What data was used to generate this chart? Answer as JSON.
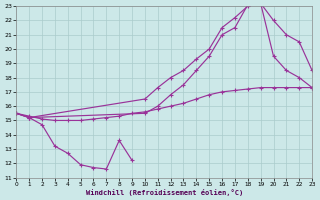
{
  "xlabel": "Windchill (Refroidissement éolien,°C)",
  "xlim": [
    0,
    23
  ],
  "ylim": [
    11,
    23
  ],
  "xticks": [
    0,
    1,
    2,
    3,
    4,
    5,
    6,
    7,
    8,
    9,
    10,
    11,
    12,
    13,
    14,
    15,
    16,
    17,
    18,
    19,
    20,
    21,
    22,
    23
  ],
  "yticks": [
    11,
    12,
    13,
    14,
    15,
    16,
    17,
    18,
    19,
    20,
    21,
    22,
    23
  ],
  "bg_color": "#cce8e8",
  "grid_color": "#aacccc",
  "line_color": "#993399",
  "line1_x": [
    0,
    1,
    2,
    3,
    4,
    5,
    6,
    7,
    8,
    9
  ],
  "line1_y": [
    15.5,
    15.2,
    14.7,
    13.2,
    12.7,
    11.9,
    11.7,
    11.6,
    13.6,
    12.2
  ],
  "line2_x": [
    0,
    1,
    10,
    11,
    12,
    13,
    14,
    15,
    16,
    17,
    18,
    19,
    20,
    21,
    22,
    23
  ],
  "line2_y": [
    15.5,
    15.2,
    16.5,
    17.3,
    18.0,
    18.5,
    19.3,
    20.0,
    21.5,
    22.2,
    23.0,
    23.2,
    22.0,
    21.0,
    20.5,
    18.5
  ],
  "line3_x": [
    0,
    1,
    10,
    11,
    12,
    13,
    14,
    15,
    16,
    17,
    18,
    19,
    20,
    21,
    22,
    23
  ],
  "line3_y": [
    15.5,
    15.2,
    15.5,
    16.0,
    16.8,
    17.5,
    18.5,
    19.5,
    21.0,
    21.5,
    23.1,
    23.2,
    19.5,
    18.5,
    18.0,
    17.3
  ],
  "line4_x": [
    0,
    1,
    2,
    3,
    4,
    5,
    6,
    7,
    8,
    9,
    10,
    11,
    12,
    13,
    14,
    15,
    16,
    17,
    18,
    19,
    20,
    21,
    22,
    23
  ],
  "line4_y": [
    15.5,
    15.3,
    15.1,
    15.0,
    15.0,
    15.0,
    15.1,
    15.2,
    15.3,
    15.5,
    15.6,
    15.8,
    16.0,
    16.2,
    16.5,
    16.8,
    17.0,
    17.1,
    17.2,
    17.3,
    17.3,
    17.3,
    17.3,
    17.3
  ]
}
